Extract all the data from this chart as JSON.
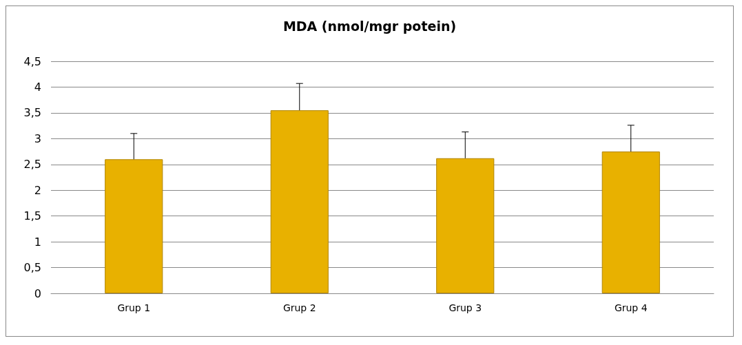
{
  "chart_data": {
    "type": "bar",
    "title": "MDA (nmol/mgr potein)",
    "categories": [
      "Grup 1",
      "Grup 2",
      "Grup 3",
      "Grup 4"
    ],
    "values": [
      2.6,
      3.55,
      2.62,
      2.75
    ],
    "errors": [
      [
        2.6,
        3.1
      ],
      [
        3.55,
        4.07
      ],
      [
        2.62,
        3.13
      ],
      [
        2.75,
        3.26
      ]
    ],
    "color": "#e8b100",
    "ylim": [
      0,
      4.5
    ],
    "yticks": [
      0,
      {
        "value": 0.5,
        "label": "0,5"
      },
      1,
      {
        "value": 1.5,
        "label": "1,5"
      },
      2,
      {
        "value": 2.5,
        "label": "2,5"
      },
      3,
      {
        "value": 3.5,
        "label": "3,5"
      },
      4,
      {
        "value": 4.5,
        "label": "4,5"
      }
    ],
    "grid": "y"
  }
}
